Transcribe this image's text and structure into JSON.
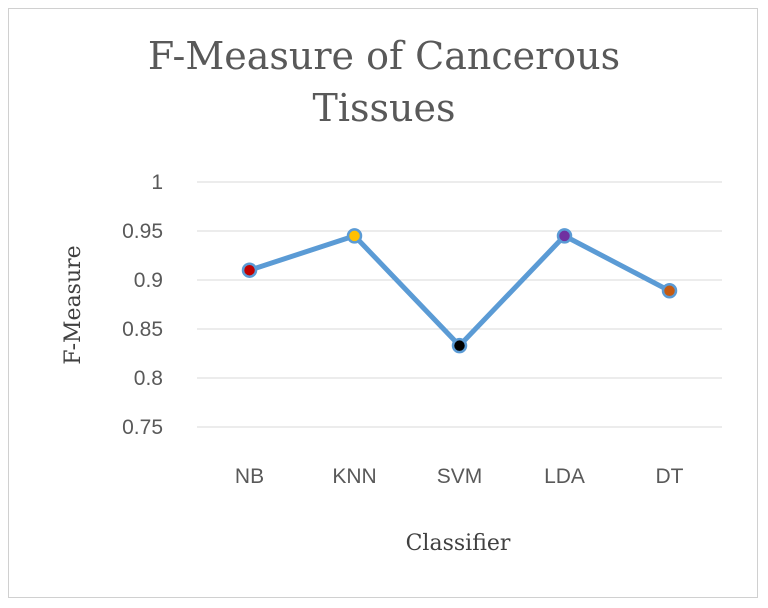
{
  "chart_data": {
    "type": "line",
    "title_lines": [
      "F-Measure of Cancerous",
      "Tissues"
    ],
    "xlabel": "Classifier",
    "ylabel": "F-Measure",
    "categories": [
      "NB",
      "KNN",
      "SVM",
      "LDA",
      "DT"
    ],
    "series": [
      {
        "values": [
          0.91,
          0.945,
          0.833,
          0.945,
          0.889
        ],
        "line_color": "#5b9bd5",
        "marker_colors": [
          "#c00000",
          "#ffc000",
          "#000000",
          "#7030a0",
          "#c55a11"
        ]
      }
    ],
    "ylim": [
      0.75,
      1
    ],
    "yticks": [
      "1",
      "0.95",
      "0.9",
      "0.85",
      "0.8",
      "0.75"
    ],
    "ytick_values": [
      1,
      0.95,
      0.9,
      0.85,
      0.8,
      0.75
    ],
    "grid": true,
    "legend": "none"
  }
}
